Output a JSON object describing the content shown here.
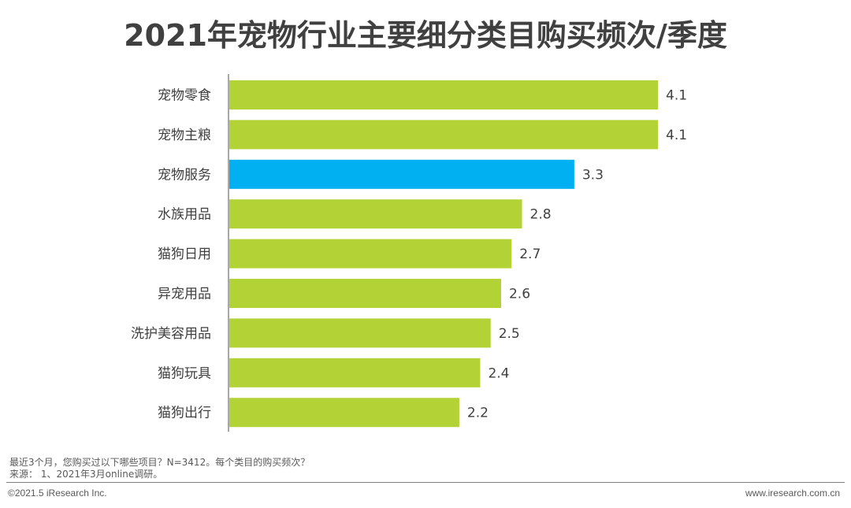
{
  "chart_data": {
    "type": "bar",
    "orientation": "horizontal",
    "title": "2021年宠物行业主要细分类目购买频次/季度",
    "categories": [
      "宠物零食",
      "宠物主粮",
      "宠物服务",
      "水族用品",
      "猫狗日用",
      "异宠用品",
      "洗护美容用品",
      "猫狗玩具",
      "猫狗出行"
    ],
    "values": [
      4.1,
      4.1,
      3.3,
      2.8,
      2.7,
      2.6,
      2.5,
      2.4,
      2.2
    ],
    "highlight_index": 2,
    "xlim": [
      0,
      4.1
    ],
    "colors": {
      "default": "#b2d235",
      "highlight": "#00b0f0",
      "axis": "#8c8c8c"
    },
    "xlabel": "",
    "ylabel": "",
    "legend": "none"
  },
  "notes": {
    "question": "最近3个月，您购买过以下哪些项目？N=3412。每个类目的购买频次？",
    "source": "来源： 1、2021年3月online调研。"
  },
  "footer": {
    "copyright": "©2021.5 iResearch Inc.",
    "website": "www.iresearch.com.cn"
  }
}
